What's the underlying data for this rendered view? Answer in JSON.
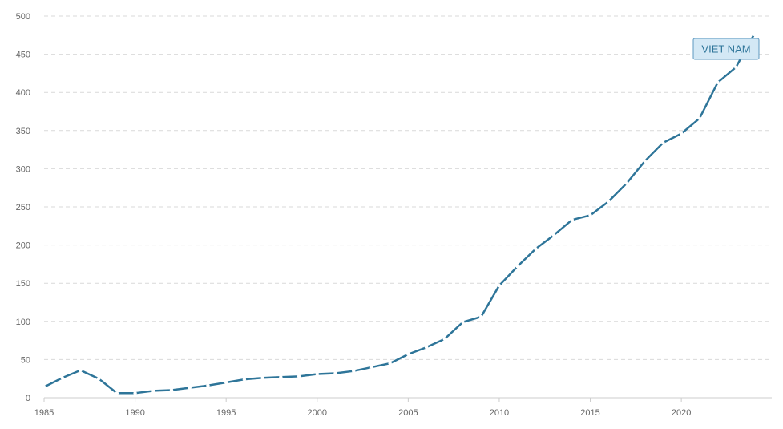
{
  "chart_data": {
    "type": "line",
    "title": "",
    "xlabel": "",
    "ylabel": "",
    "xlim": [
      1985,
      2024
    ],
    "ylim": [
      0,
      500
    ],
    "x_ticks": [
      1985,
      1990,
      1995,
      2000,
      2005,
      2010,
      2015,
      2020
    ],
    "y_ticks": [
      0,
      50,
      100,
      150,
      200,
      250,
      300,
      350,
      400,
      450,
      500
    ],
    "grid": true,
    "legend": "none",
    "series": [
      {
        "name": "VIET NAM",
        "color": "#2e7599",
        "x": [
          1985,
          1986,
          1987,
          1988,
          1989,
          1990,
          1991,
          1992,
          1993,
          1994,
          1995,
          1996,
          1997,
          1998,
          1999,
          2000,
          2001,
          2002,
          2003,
          2004,
          2005,
          2006,
          2007,
          2008,
          2009,
          2010,
          2011,
          2012,
          2013,
          2014,
          2015,
          2016,
          2017,
          2018,
          2019,
          2020,
          2021,
          2022,
          2023,
          2024
        ],
        "values": [
          14,
          26,
          36,
          25,
          6,
          6,
          9,
          10,
          13,
          16,
          20,
          24,
          26,
          27,
          28,
          31,
          32,
          35,
          40,
          45,
          57,
          66,
          77,
          99,
          106,
          147,
          172,
          195,
          213,
          233,
          239,
          257,
          281,
          310,
          334,
          346,
          366,
          413,
          433,
          476
        ]
      }
    ],
    "series_tag": {
      "label": "VIET NAM",
      "box_fill": "#d3e8f5",
      "box_stroke": "#5d98c0",
      "text_color": "#2e7599"
    }
  }
}
